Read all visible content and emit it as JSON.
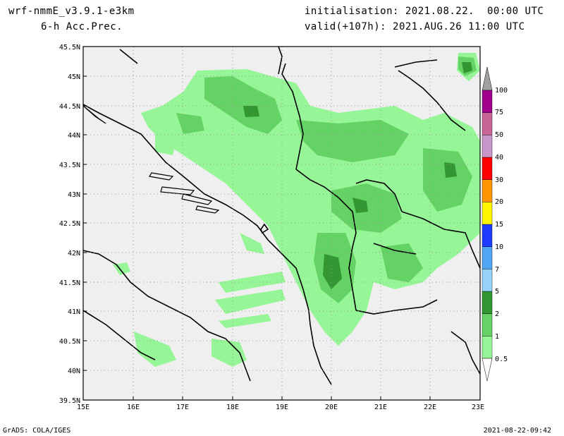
{
  "header": {
    "model": "wrf-nmmE_v3.9.1-e3km",
    "field": "6-h Acc.Prec.",
    "init_label": "initialisation:",
    "init_value": "2021.08.22.  00:00 UTC",
    "valid_label": "valid(+107h):",
    "valid_value": "2021.AUG.26 11:00 UTC"
  },
  "footer": {
    "left": "GrADS: COLA/IGES",
    "right": "2021-08-22-09:42"
  },
  "map": {
    "lat_labels": [
      "45.5N",
      "45N",
      "44.5N",
      "44N",
      "43.5N",
      "43N",
      "42.5N",
      "42N",
      "41.5N",
      "41N",
      "40.5N",
      "40N",
      "39.5N"
    ],
    "lon_labels": [
      "15E",
      "16E",
      "17E",
      "18E",
      "19E",
      "20E",
      "21E",
      "22E",
      "23E"
    ],
    "background_color": "#efefef",
    "grid": true
  },
  "legend": {
    "levels": [
      "0.5",
      "1",
      "2",
      "5",
      "7",
      "10",
      "15",
      "20",
      "30",
      "40",
      "50",
      "75",
      "100"
    ],
    "colors": [
      "#96f596",
      "#64d264",
      "#329632",
      "#96d2fa",
      "#50a5f5",
      "#1e3cff",
      "#fff500",
      "#ff9600",
      "#ff0000",
      "#c896c8",
      "#c86496",
      "#a0008c"
    ],
    "top_color": "#a0a0a0"
  }
}
